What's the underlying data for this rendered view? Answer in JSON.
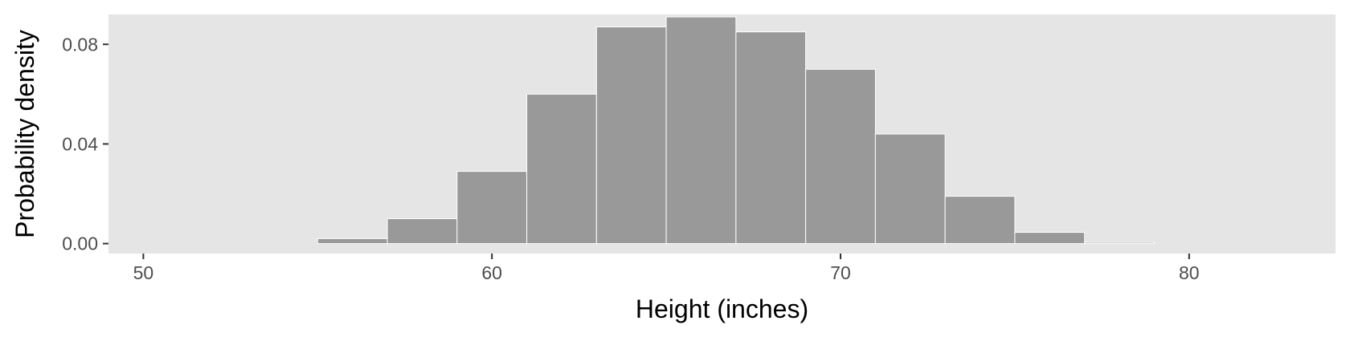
{
  "chart_data": {
    "type": "bar",
    "subtype": "histogram",
    "xlabel": "Height (inches)",
    "ylabel": "Probability density",
    "xlim": [
      49,
      84.2
    ],
    "ylim": [
      -0.004,
      0.092
    ],
    "x_ticks": [
      50,
      60,
      70,
      80
    ],
    "x_tick_labels": [
      "50",
      "60",
      "70",
      "80"
    ],
    "y_ticks": [
      0.0,
      0.04,
      0.08
    ],
    "y_tick_labels": [
      "0.00",
      "0.04",
      "0.08"
    ],
    "grid": false,
    "legend": "none",
    "bins": [
      {
        "x0": 55,
        "x1": 57,
        "density": 0.002
      },
      {
        "x0": 57,
        "x1": 59,
        "density": 0.01
      },
      {
        "x0": 59,
        "x1": 61,
        "density": 0.029
      },
      {
        "x0": 61,
        "x1": 63,
        "density": 0.06
      },
      {
        "x0": 63,
        "x1": 65,
        "density": 0.087
      },
      {
        "x0": 65,
        "x1": 67,
        "density": 0.091
      },
      {
        "x0": 67,
        "x1": 69,
        "density": 0.085
      },
      {
        "x0": 69,
        "x1": 71,
        "density": 0.07
      },
      {
        "x0": 71,
        "x1": 73,
        "density": 0.044
      },
      {
        "x0": 73,
        "x1": 75,
        "density": 0.019
      },
      {
        "x0": 75,
        "x1": 77,
        "density": 0.0045
      },
      {
        "x0": 77,
        "x1": 79,
        "density": 0.0005
      }
    ],
    "colors": {
      "panel_background": "#e5e5e5",
      "bar_fill": "#999999",
      "bar_outline": "#ffffff",
      "tick_color": "#333333"
    }
  }
}
